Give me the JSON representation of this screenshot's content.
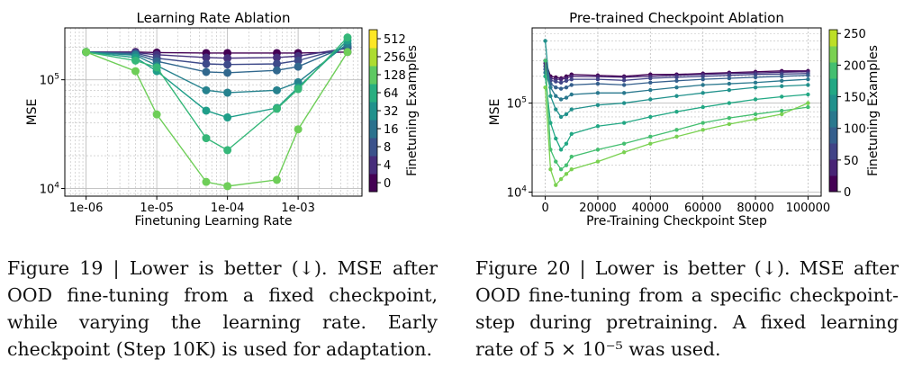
{
  "chart_data": [
    {
      "type": "line",
      "title": "Learning Rate Ablation",
      "xlabel": "Finetuning Learning Rate",
      "ylabel": "MSE",
      "x_scale": "log",
      "y_scale": "log",
      "xlim": [
        5e-07,
        0.008
      ],
      "ylim": [
        8500,
        300000
      ],
      "x_ticks": [
        {
          "value": 1e-06,
          "label": "1e-06"
        },
        {
          "value": 1e-05,
          "label": "1e-05"
        },
        {
          "value": 0.0001,
          "label": "1e-04"
        },
        {
          "value": 0.001,
          "label": "1e-03"
        }
      ],
      "y_ticks": [
        {
          "value": 10000,
          "label": "10^4"
        },
        {
          "value": 100000,
          "label": "10^5"
        }
      ],
      "grid": true,
      "colorbar": {
        "label": "Finetuning Examples",
        "ticks": [
          "0",
          "4",
          "8",
          "16",
          "32",
          "64",
          "128",
          "256",
          "512"
        ],
        "colors": [
          "#440154",
          "#472d7b",
          "#3b528b",
          "#2c728e",
          "#21918c",
          "#28ae80",
          "#5ec962",
          "#addc30",
          "#fde725"
        ]
      },
      "x": [
        1e-06,
        5e-06,
        1e-05,
        5e-05,
        0.0001,
        0.0005,
        0.001,
        0.005
      ],
      "series": [
        {
          "color": "#440154",
          "values": [
            180000,
            180000,
            178000,
            176000,
            176000,
            176000,
            176000,
            180000
          ]
        },
        {
          "color": "#46327e",
          "values": [
            180000,
            178000,
            170000,
            160000,
            158000,
            160000,
            165000,
            195000
          ]
        },
        {
          "color": "#3e4a89",
          "values": [
            180000,
            176000,
            158000,
            140000,
            138000,
            140000,
            150000,
            200000
          ]
        },
        {
          "color": "#31688e",
          "values": [
            180000,
            172000,
            148000,
            118000,
            116000,
            122000,
            132000,
            205000
          ]
        },
        {
          "color": "#26828e",
          "values": [
            180000,
            168000,
            135000,
            80000,
            76000,
            80000,
            95000,
            215000
          ]
        },
        {
          "color": "#1f9e89",
          "values": [
            180000,
            160000,
            120000,
            52000,
            45000,
            55000,
            85000,
            230000
          ]
        },
        {
          "color": "#35b779",
          "values": [
            180000,
            150000,
            130000,
            29000,
            22500,
            54000,
            82000,
            245000
          ]
        },
        {
          "color": "#6ece58",
          "values": [
            180000,
            120000,
            48000,
            11500,
            10500,
            12000,
            35000,
            180000
          ]
        }
      ]
    },
    {
      "type": "line",
      "title": "Pre-trained Checkpoint Ablation",
      "xlabel": "Pre-Training Checkpoint Step",
      "ylabel": "MSE",
      "y_scale": "log",
      "xlim": [
        -5000,
        105000
      ],
      "ylim": [
        9000,
        700000
      ],
      "x_ticks": [
        {
          "value": 0,
          "label": "0"
        },
        {
          "value": 20000,
          "label": "20000"
        },
        {
          "value": 40000,
          "label": "40000"
        },
        {
          "value": 60000,
          "label": "60000"
        },
        {
          "value": 80000,
          "label": "80000"
        },
        {
          "value": 100000,
          "label": "100000"
        }
      ],
      "y_ticks": [
        {
          "value": 10000,
          "label": "10^4"
        },
        {
          "value": 100000,
          "label": "10^5"
        }
      ],
      "grid": true,
      "colorbar": {
        "label": "Finetuning Examples",
        "ticks": [
          "0",
          "50",
          "100",
          "150",
          "200",
          "250"
        ],
        "range": [
          0,
          256
        ]
      },
      "x": [
        0,
        2000,
        4000,
        6000,
        8000,
        10000,
        20000,
        30000,
        40000,
        50000,
        60000,
        70000,
        80000,
        90000,
        100000
      ],
      "series": [
        {
          "color": "#440154",
          "values": [
            300000,
            200000,
            195000,
            190000,
            200000,
            210000,
            205000,
            200000,
            210000,
            210000,
            215000,
            220000,
            225000,
            230000,
            230000
          ]
        },
        {
          "color": "#482475",
          "values": [
            280000,
            190000,
            185000,
            185000,
            190000,
            200000,
            198000,
            195000,
            200000,
            205000,
            210000,
            215000,
            218000,
            222000,
            225000
          ]
        },
        {
          "color": "#414487",
          "values": [
            260000,
            180000,
            175000,
            170000,
            178000,
            185000,
            185000,
            180000,
            190000,
            195000,
            200000,
            205000,
            210000,
            212000,
            215000
          ]
        },
        {
          "color": "#355f8d",
          "values": [
            240000,
            165000,
            150000,
            145000,
            150000,
            160000,
            165000,
            160000,
            170000,
            178000,
            185000,
            190000,
            195000,
            200000,
            205000
          ]
        },
        {
          "color": "#2a788e",
          "values": [
            220000,
            150000,
            120000,
            110000,
            115000,
            125000,
            130000,
            130000,
            140000,
            150000,
            160000,
            165000,
            170000,
            178000,
            185000
          ]
        },
        {
          "color": "#21918c",
          "values": [
            500000,
            120000,
            85000,
            70000,
            75000,
            85000,
            95000,
            100000,
            110000,
            120000,
            130000,
            140000,
            150000,
            155000,
            160000
          ]
        },
        {
          "color": "#22a884",
          "values": [
            200000,
            60000,
            40000,
            30000,
            35000,
            45000,
            55000,
            60000,
            70000,
            80000,
            90000,
            100000,
            110000,
            118000,
            125000
          ]
        },
        {
          "color": "#44bf70",
          "values": [
            300000,
            30000,
            22000,
            18000,
            20000,
            25000,
            30000,
            35000,
            42000,
            50000,
            60000,
            68000,
            75000,
            82000,
            90000
          ]
        },
        {
          "color": "#7ad151",
          "values": [
            150000,
            18000,
            12000,
            14000,
            16000,
            18000,
            22000,
            28000,
            35000,
            42000,
            50000,
            58000,
            66000,
            75000,
            100000
          ]
        }
      ]
    }
  ],
  "captions": {
    "fig19": "Figure 19 | Lower is better (↓). MSE after OOD fine-tuning from a fixed checkpoint, while varying the learning rate. Early checkpoint (Step 10K) is used for adaptation.",
    "fig20": "Figure 20 | Lower is better (↓). MSE after OOD fine-tuning from a specific checkpoint-step during pretraining. A fixed learning rate of 5 × 10⁻⁵ was used."
  }
}
